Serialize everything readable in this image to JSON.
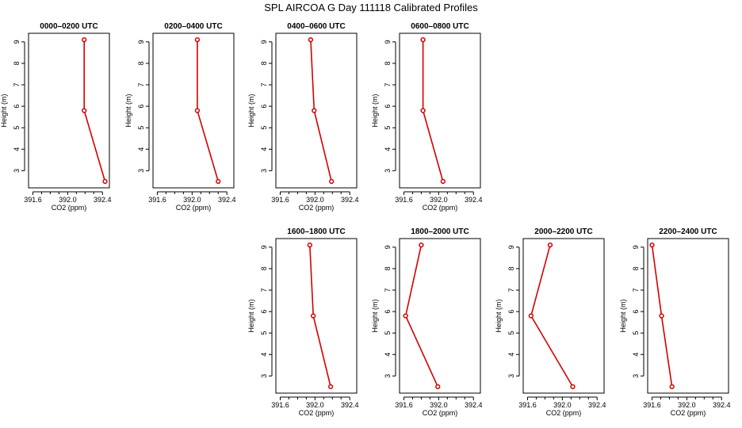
{
  "title": "SPL AIRCOA G  Day 111118  Calibrated Profiles",
  "colors": {
    "series": "#d40000",
    "axis": "#000000",
    "background": "#ffffff"
  },
  "chart_data": [
    {
      "type": "line",
      "title": "0000–0200 UTC",
      "xlabel": "CO2 (ppm)",
      "ylabel": "Height (m)",
      "xlim": [
        391.55,
        392.48
      ],
      "ylim": [
        2.2,
        9.4
      ],
      "xticks": [
        "391.6",
        "392.0",
        "392.4"
      ],
      "yticks": [
        "3",
        "4",
        "5",
        "6",
        "7",
        "8",
        "9"
      ],
      "x": [
        392.19,
        392.19,
        392.43
      ],
      "y": [
        9.1,
        5.8,
        2.5
      ]
    },
    {
      "type": "line",
      "title": "0200–0400 UTC",
      "xlabel": "CO2 (ppm)",
      "ylabel": "Height (m)",
      "xlim": [
        391.55,
        392.48
      ],
      "ylim": [
        2.2,
        9.4
      ],
      "xticks": [
        "391.6",
        "392.0",
        "392.4"
      ],
      "yticks": [
        "3",
        "4",
        "5",
        "6",
        "7",
        "8",
        "9"
      ],
      "x": [
        392.06,
        392.06,
        392.3
      ],
      "y": [
        9.1,
        5.8,
        2.5
      ]
    },
    {
      "type": "line",
      "title": "0400–0600 UTC",
      "xlabel": "CO2 (ppm)",
      "ylabel": "Height (m)",
      "xlim": [
        391.55,
        392.48
      ],
      "ylim": [
        2.2,
        9.4
      ],
      "xticks": [
        "391.6",
        "392.0",
        "392.4"
      ],
      "yticks": [
        "3",
        "4",
        "5",
        "6",
        "7",
        "8",
        "9"
      ],
      "x": [
        391.95,
        391.99,
        392.19
      ],
      "y": [
        9.1,
        5.8,
        2.5
      ]
    },
    {
      "type": "line",
      "title": "0600–0800 UTC",
      "xlabel": "CO2 (ppm)",
      "ylabel": "Height (m)",
      "xlim": [
        391.55,
        392.48
      ],
      "ylim": [
        2.2,
        9.4
      ],
      "xticks": [
        "391.6",
        "392.0",
        "392.4"
      ],
      "yticks": [
        "3",
        "4",
        "5",
        "6",
        "7",
        "8",
        "9"
      ],
      "x": [
        391.82,
        391.82,
        392.05
      ],
      "y": [
        9.1,
        5.8,
        2.5
      ]
    },
    {
      "type": "line",
      "title": "1600–1800 UTC",
      "xlabel": "CO2 (ppm)",
      "ylabel": "Height (m)",
      "xlim": [
        391.55,
        392.48
      ],
      "ylim": [
        2.2,
        9.4
      ],
      "xticks": [
        "391.6",
        "392.0",
        "392.4"
      ],
      "yticks": [
        "3",
        "4",
        "5",
        "6",
        "7",
        "8",
        "9"
      ],
      "x": [
        391.94,
        391.98,
        392.18
      ],
      "y": [
        9.1,
        5.8,
        2.5
      ]
    },
    {
      "type": "line",
      "title": "1800–2000 UTC",
      "xlabel": "CO2 (ppm)",
      "ylabel": "Height (m)",
      "xlim": [
        391.55,
        392.48
      ],
      "ylim": [
        2.2,
        9.4
      ],
      "xticks": [
        "391.6",
        "392.0",
        "392.4"
      ],
      "yticks": [
        "3",
        "4",
        "5",
        "6",
        "7",
        "8",
        "9"
      ],
      "x": [
        391.8,
        391.62,
        391.99
      ],
      "y": [
        9.1,
        5.8,
        2.5
      ]
    },
    {
      "type": "line",
      "title": "2000–2200 UTC",
      "xlabel": "CO2 (ppm)",
      "ylabel": "Height (m)",
      "xlim": [
        391.55,
        392.48
      ],
      "ylim": [
        2.2,
        9.4
      ],
      "xticks": [
        "391.6",
        "392.0",
        "392.4"
      ],
      "yticks": [
        "3",
        "4",
        "5",
        "6",
        "7",
        "8",
        "9"
      ],
      "x": [
        391.86,
        391.64,
        392.12
      ],
      "y": [
        9.1,
        5.8,
        2.5
      ]
    },
    {
      "type": "line",
      "title": "2200–2400 UTC",
      "xlabel": "CO2 (ppm)",
      "ylabel": "Height (m)",
      "xlim": [
        391.55,
        392.48
      ],
      "ylim": [
        2.2,
        9.4
      ],
      "xticks": [
        "391.6",
        "392.0",
        "392.4"
      ],
      "yticks": [
        "3",
        "4",
        "5",
        "6",
        "7",
        "8",
        "9"
      ],
      "x": [
        391.6,
        391.71,
        391.83
      ],
      "y": [
        9.1,
        5.8,
        2.5
      ]
    }
  ]
}
